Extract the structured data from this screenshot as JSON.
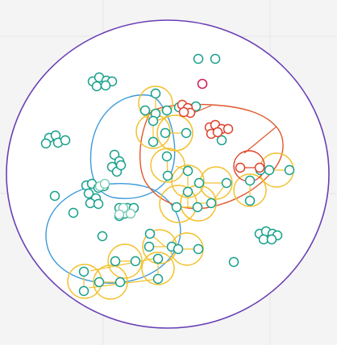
{
  "diagram": {
    "colors": {
      "background": "#f4f4f4",
      "grid": "#e6e6e6",
      "panel": "#ffffff",
      "outer_boundary": "#6a3fb5",
      "blue_region": "#3a9ad9",
      "red_region": "#e0572b",
      "yellow_cluster": "#f2c12e",
      "teal_node": "#17a08c",
      "magenta_node": "#d0215a",
      "red_node": "#e0402b",
      "light_teal": "#74c9b5"
    },
    "node_types": [
      "teal-node",
      "magenta-node",
      "red-node"
    ],
    "cluster_types": [
      "yellow-cluster",
      "red-cluster"
    ],
    "region_types": [
      "outer-boundary",
      "blue-region",
      "red-region"
    ]
  }
}
